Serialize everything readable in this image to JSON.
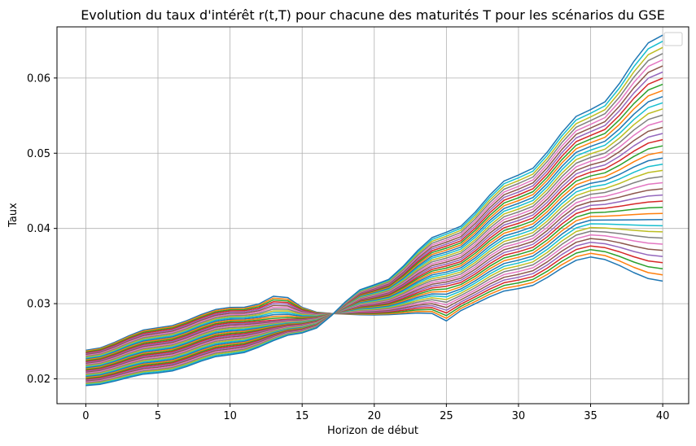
{
  "chart_data": {
    "type": "line",
    "title": "Evolution du taux d'intérêt r(t,T) pour chacune des maturités T pour les scénarios du GSE",
    "xlabel": "Horizon de début",
    "ylabel": "Taux",
    "xlim": [
      -2,
      41.8
    ],
    "ylim": [
      0.0167,
      0.0668
    ],
    "xticks": [
      "0",
      "5",
      "10",
      "15",
      "20",
      "25",
      "30",
      "35",
      "40"
    ],
    "xtick_values": [
      0,
      5,
      10,
      15,
      20,
      25,
      30,
      35,
      40
    ],
    "yticks": [
      "0.02",
      "0.03",
      "0.04",
      "0.05",
      "0.06"
    ],
    "ytick_values": [
      0.02,
      0.03,
      0.04,
      0.05,
      0.06
    ],
    "grid": true,
    "legend": "top-right (empty)",
    "series_count": 41,
    "colors": [
      "#1f77b4",
      "#ff7f0e",
      "#2ca02c",
      "#d62728",
      "#9467bd",
      "#8c564b",
      "#e377c2",
      "#7f7f7f",
      "#bcbd22",
      "#17becf"
    ],
    "x": [
      0,
      1,
      2,
      3,
      4,
      5,
      6,
      7,
      8,
      9,
      10,
      11,
      12,
      13,
      14,
      15,
      16,
      17,
      18,
      19,
      20,
      21,
      22,
      23,
      24,
      25,
      26,
      27,
      28,
      29,
      30,
      31,
      32,
      33,
      34,
      35,
      36,
      37,
      38,
      39,
      40
    ],
    "anchors_x": [
      0,
      5,
      10,
      15,
      20,
      25,
      30,
      35,
      40
    ],
    "profile_first": [
      0.0238,
      0.0268,
      0.0295,
      0.0288,
      0.0285,
      0.0289,
      0.032,
      0.0362,
      0.033
    ],
    "profile_last": [
      0.0191,
      0.0208,
      0.0232,
      0.0261,
      0.0325,
      0.0395,
      0.0471,
      0.0558,
      0.0657
    ],
    "bumps": [
      {
        "x": 13.5,
        "amp": 0.0022,
        "width": 1.4
      },
      {
        "x": 25,
        "amp": -0.0012,
        "width": 0.7
      }
    ]
  }
}
